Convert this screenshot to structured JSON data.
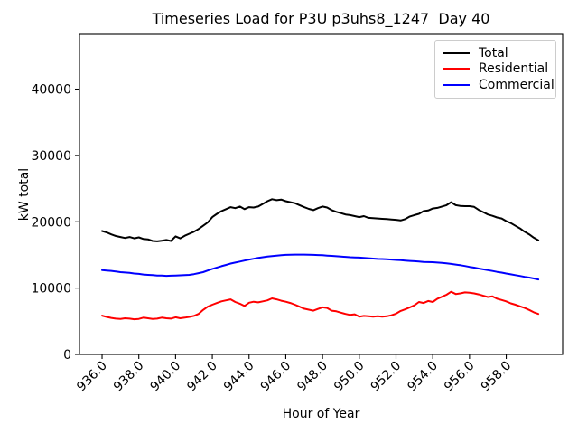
{
  "chart_data": {
    "type": "line",
    "title": "Timeseries Load for P3U p3uhs8_1247  Day 40",
    "xlabel": "Hour of Year",
    "ylabel": "kW total",
    "grid": false,
    "legend_position": "upper right",
    "xlim": [
      934.77,
      961.07
    ],
    "ylim": [
      0,
      48250
    ],
    "x_ticks": [
      936,
      938,
      940,
      942,
      944,
      946,
      948,
      950,
      952,
      954,
      956,
      958
    ],
    "x_tick_labels": [
      "936.0",
      "938.0",
      "940.0",
      "942.0",
      "944.0",
      "946.0",
      "948.0",
      "950.0",
      "952.0",
      "954.0",
      "956.0",
      "958.0"
    ],
    "x_tick_rotation": 45,
    "y_ticks": [
      0,
      10000,
      20000,
      30000,
      40000
    ],
    "y_tick_labels": [
      "0",
      "10000",
      "20000",
      "30000",
      "40000"
    ],
    "x": [
      936,
      936.25,
      936.5,
      936.75,
      937,
      937.25,
      937.5,
      937.75,
      938,
      938.25,
      938.5,
      938.75,
      939,
      939.25,
      939.5,
      939.75,
      940,
      940.25,
      940.5,
      940.75,
      941,
      941.25,
      941.5,
      941.75,
      942,
      942.25,
      942.5,
      942.75,
      943,
      943.25,
      943.5,
      943.75,
      944,
      944.25,
      944.5,
      944.75,
      945,
      945.25,
      945.5,
      945.75,
      946,
      946.25,
      946.5,
      946.75,
      947,
      947.25,
      947.5,
      947.75,
      948,
      948.25,
      948.5,
      948.75,
      949,
      949.25,
      949.5,
      949.75,
      950,
      950.25,
      950.5,
      950.75,
      951,
      951.25,
      951.5,
      951.75,
      952,
      952.25,
      952.5,
      952.75,
      953,
      953.25,
      953.5,
      953.75,
      954,
      954.25,
      954.5,
      954.75,
      955,
      955.25,
      955.5,
      955.75,
      956,
      956.25,
      956.5,
      956.75,
      957,
      957.25,
      957.5,
      957.75,
      958,
      958.25,
      958.5,
      958.75,
      959,
      959.25,
      959.5,
      959.75
    ],
    "series": [
      {
        "name": "Total",
        "color": "#000000",
        "values": [
          18600,
          18400,
          18100,
          17850,
          17700,
          17550,
          17700,
          17500,
          17650,
          17400,
          17350,
          17100,
          17050,
          17150,
          17250,
          17100,
          17800,
          17500,
          17900,
          18200,
          18500,
          18900,
          19400,
          19900,
          20700,
          21200,
          21600,
          21900,
          22200,
          22050,
          22300,
          21900,
          22200,
          22150,
          22300,
          22700,
          23100,
          23400,
          23250,
          23350,
          23100,
          22950,
          22800,
          22500,
          22200,
          21950,
          21750,
          22050,
          22300,
          22150,
          21750,
          21500,
          21300,
          21100,
          21000,
          20850,
          20700,
          20850,
          20600,
          20550,
          20500,
          20450,
          20400,
          20350,
          20300,
          20200,
          20400,
          20800,
          21000,
          21200,
          21600,
          21700,
          22000,
          22100,
          22300,
          22500,
          22950,
          22500,
          22400,
          22350,
          22350,
          22250,
          21800,
          21450,
          21100,
          20900,
          20650,
          20500,
          20100,
          19800,
          19400,
          19000,
          18500,
          18100,
          17600,
          17200
        ]
      },
      {
        "name": "Residential",
        "color": "#ff0000",
        "values": [
          5850,
          5650,
          5500,
          5400,
          5350,
          5450,
          5400,
          5300,
          5350,
          5550,
          5450,
          5350,
          5400,
          5550,
          5450,
          5400,
          5600,
          5450,
          5550,
          5650,
          5800,
          6100,
          6700,
          7200,
          7500,
          7750,
          8000,
          8150,
          8300,
          7900,
          7650,
          7300,
          7800,
          7950,
          7850,
          8000,
          8150,
          8450,
          8300,
          8100,
          7950,
          7750,
          7500,
          7200,
          6900,
          6750,
          6600,
          6850,
          7100,
          7000,
          6600,
          6500,
          6300,
          6100,
          5950,
          6050,
          5700,
          5800,
          5750,
          5700,
          5750,
          5700,
          5750,
          5900,
          6150,
          6550,
          6800,
          7100,
          7400,
          7900,
          7750,
          8050,
          7900,
          8400,
          8700,
          9000,
          9450,
          9100,
          9200,
          9350,
          9300,
          9200,
          9050,
          8850,
          8650,
          8750,
          8400,
          8200,
          8000,
          7700,
          7500,
          7250,
          7000,
          6700,
          6350,
          6100
        ]
      },
      {
        "name": "Commercial",
        "color": "#0000ff",
        "values": [
          12700,
          12650,
          12600,
          12500,
          12400,
          12350,
          12300,
          12200,
          12150,
          12050,
          12000,
          11950,
          11900,
          11880,
          11850,
          11870,
          11900,
          11920,
          11950,
          12000,
          12100,
          12250,
          12400,
          12650,
          12900,
          13100,
          13300,
          13500,
          13700,
          13850,
          14000,
          14150,
          14300,
          14420,
          14550,
          14650,
          14750,
          14830,
          14900,
          14950,
          15000,
          15030,
          15050,
          15050,
          15050,
          15020,
          15000,
          14980,
          14950,
          14900,
          14850,
          14800,
          14750,
          14700,
          14650,
          14620,
          14600,
          14550,
          14500,
          14450,
          14400,
          14380,
          14350,
          14300,
          14250,
          14200,
          14150,
          14100,
          14050,
          14000,
          13950,
          13920,
          13900,
          13850,
          13800,
          13730,
          13650,
          13550,
          13450,
          13330,
          13200,
          13080,
          12950,
          12830,
          12700,
          12580,
          12450,
          12330,
          12200,
          12080,
          11950,
          11830,
          11700,
          11580,
          11450,
          11300
        ]
      }
    ]
  }
}
